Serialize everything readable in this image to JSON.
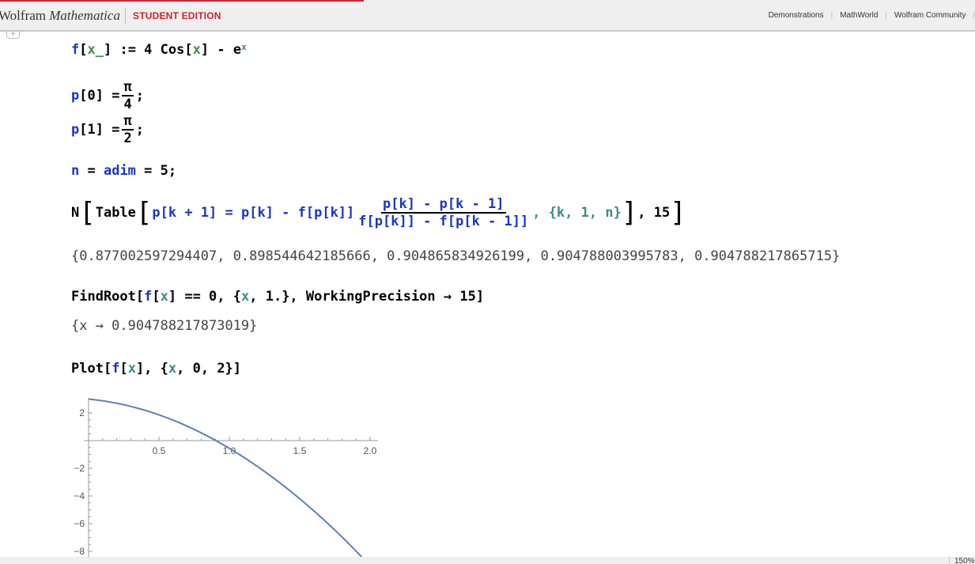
{
  "header": {
    "brand_main": "Wolfram",
    "brand_italic": "Mathematica",
    "edition": "STUDENT EDITION",
    "links": [
      "Demonstrations",
      "MathWorld",
      "Wolfram Community"
    ],
    "accent": "#d0232f"
  },
  "cells": {
    "def": {
      "f": "f",
      "x_": "x_",
      "assign": ":= 4 Cos[",
      "x": "x",
      "rest": "] - ",
      "e": "e",
      "sup": "x"
    },
    "p0": {
      "p": "p",
      "idx": "[0] =",
      "num": "π",
      "den": "4",
      "end": ";"
    },
    "p1": {
      "p": "p",
      "idx": "[1] =",
      "num": "π",
      "den": "2",
      "end": ";"
    },
    "n": {
      "n": "n",
      "eq": " = ",
      "adim": "adim",
      "rest": " = 5;"
    },
    "table": {
      "N": "N",
      "Table": "Table",
      "lhs": "p[k + 1] = p[k] - f[p[k]]",
      "num": "p[k] - p[k - 1]",
      "den": "f[p[k]] - f[p[k - 1]]",
      "iter": ", {k, 1, n}",
      "end": ", 15"
    },
    "table_out": "{0.877002597294407, 0.898544642185666, 0.904865834926199, 0.904788003995783, 0.904788217865715}",
    "findroot": {
      "head": "FindRoot[",
      "f": "f",
      "x": "x",
      "mid": "] == 0, {",
      "x2": "x",
      "rest": ", 1.}, WorkingPrecision → 15]"
    },
    "findroot_out": "{x → 0.904788217873019}",
    "plot": {
      "head": "Plot[",
      "f": "f",
      "x": "x",
      "mid": "], {",
      "x2": "x",
      "rest": ", 0, 2}]"
    }
  },
  "chart_data": {
    "type": "line",
    "function": "4 Cos[x] - e^x",
    "xlim": [
      0,
      2
    ],
    "ylim_visible": [
      -8.5,
      2.8
    ],
    "x_ticks": [
      "0.5",
      "1.0",
      "1.5",
      "2.0"
    ],
    "y_ticks": [
      "2",
      "-2",
      "-4",
      "-6",
      "-8"
    ],
    "line_color": "#5e81b5"
  },
  "statusbar": {
    "zoom": "150%"
  }
}
